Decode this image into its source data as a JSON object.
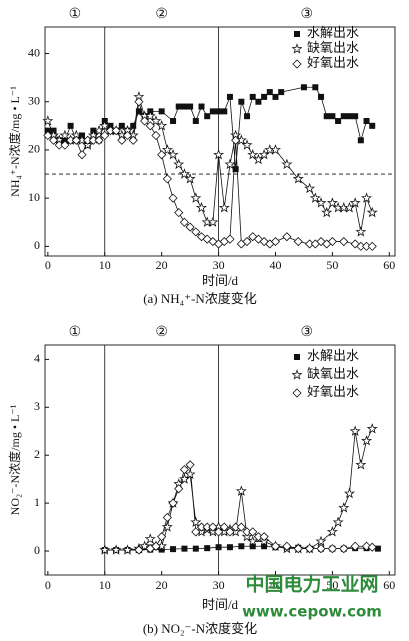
{
  "chart_data": [
    {
      "type": "line",
      "caption": "(a) NH₄⁺-N浓度变化",
      "x_label": "时间/d",
      "y_label": "NH₄⁺-N浓度/mg • L⁻¹",
      "phases": [
        "①",
        "②",
        "③"
      ],
      "vlines": [
        10,
        30
      ],
      "hline": 15,
      "xlim": [
        -0.5,
        61
      ],
      "ylim": [
        -2,
        45.5
      ],
      "xticks": [
        0,
        10,
        20,
        30,
        40,
        50,
        60
      ],
      "yticks": [
        0,
        10,
        20,
        30,
        40
      ],
      "series": [
        {
          "name": "水解出水",
          "color": "#111111",
          "marker": "square",
          "x": [
            0,
            1,
            2,
            3,
            4,
            5,
            6,
            7,
            8,
            9,
            10,
            11,
            12,
            13,
            14,
            15,
            16,
            17,
            18,
            20,
            22,
            23,
            24,
            25,
            26,
            27,
            28,
            29,
            30,
            31,
            32,
            33,
            34,
            35,
            36,
            37,
            38,
            39,
            40,
            41,
            45,
            47,
            48,
            49,
            50,
            51,
            52,
            53,
            54,
            55,
            56,
            57
          ],
          "values": [
            24,
            24,
            22,
            22,
            25,
            22,
            23,
            21,
            24,
            22,
            26,
            25,
            24,
            25,
            24,
            25,
            28,
            27,
            28,
            28,
            26,
            29,
            29,
            29,
            26,
            29,
            27,
            28,
            28,
            28,
            31,
            16,
            30,
            27,
            31,
            30,
            31,
            32,
            31,
            32,
            33,
            33,
            31,
            27,
            27,
            26,
            27,
            27,
            27,
            22,
            26,
            25
          ]
        },
        {
          "name": "缺氧出水",
          "color": "#111111",
          "marker": "star",
          "x": [
            0,
            1,
            2,
            3,
            4,
            5,
            6,
            7,
            8,
            9,
            10,
            11,
            12,
            13,
            14,
            15,
            16,
            17,
            18,
            19,
            20,
            21,
            22,
            23,
            24,
            25,
            26,
            27,
            28,
            29,
            30,
            31,
            32,
            33,
            34,
            35,
            36,
            37,
            38,
            39,
            40,
            42,
            44,
            46,
            47,
            48,
            49,
            50,
            51,
            52,
            53,
            54,
            55,
            56,
            57
          ],
          "values": [
            26,
            23,
            22,
            23,
            22,
            23,
            22,
            21,
            23,
            24,
            25,
            24,
            24,
            23,
            24,
            23,
            31,
            27,
            27,
            26,
            25,
            20,
            19,
            17,
            15,
            14,
            10,
            8,
            5,
            5,
            19,
            8,
            17,
            23,
            22,
            21,
            19,
            18,
            19,
            20,
            20,
            17,
            14,
            12,
            10,
            9,
            7,
            9,
            8,
            8,
            8,
            9,
            3,
            10,
            7
          ]
        },
        {
          "name": "好氧出水",
          "color": "#111111",
          "marker": "diamond",
          "x": [
            0,
            1,
            2,
            3,
            4,
            5,
            6,
            7,
            8,
            9,
            10,
            11,
            12,
            13,
            14,
            15,
            16,
            17,
            18,
            19,
            20,
            21,
            22,
            23,
            24,
            25,
            26,
            27,
            28,
            29,
            30,
            31,
            32,
            33,
            34,
            35,
            36,
            37,
            38,
            39,
            40,
            42,
            44,
            46,
            47,
            48,
            49,
            50,
            52,
            54,
            55,
            56,
            57
          ],
          "values": [
            23,
            22,
            21,
            21,
            22,
            22,
            19,
            22,
            22,
            22,
            23,
            24,
            24,
            22,
            23,
            22,
            30,
            26,
            25,
            23,
            19,
            14,
            10,
            7,
            5,
            4,
            3,
            2,
            1.5,
            1,
            0.5,
            1,
            1.5,
            22,
            0.5,
            1,
            2,
            1.5,
            1,
            0.5,
            1,
            2,
            1,
            0.5,
            0.5,
            1,
            0.5,
            1,
            1,
            0.5,
            0,
            0,
            0
          ]
        }
      ]
    },
    {
      "type": "line",
      "caption": "(b) NO₂⁻-N浓度变化",
      "x_label": "时间/d",
      "y_label": "NO₂⁻-N浓度/mg • L⁻¹",
      "phases": [
        "①",
        "②",
        "③"
      ],
      "vlines": [
        10,
        30
      ],
      "xlim": [
        -0.5,
        61
      ],
      "ylim": [
        -0.5,
        4.3
      ],
      "xticks": [
        0,
        10,
        20,
        30,
        40,
        50,
        60
      ],
      "yticks": [
        0,
        1,
        2,
        3,
        4
      ],
      "series": [
        {
          "name": "水解出水",
          "color": "#111111",
          "marker": "square",
          "x": [
            10,
            12,
            14,
            16,
            18,
            20,
            22,
            24,
            26,
            28,
            30,
            32,
            34,
            36,
            38,
            40,
            42,
            44,
            46,
            48,
            50,
            52,
            54,
            56,
            58
          ],
          "values": [
            0.02,
            0.02,
            0.02,
            0.02,
            0.03,
            0.03,
            0.04,
            0.05,
            0.05,
            0.06,
            0.08,
            0.08,
            0.1,
            0.1,
            0.1,
            0.08,
            0.07,
            0.07,
            0.05,
            0.05,
            0.05,
            0.05,
            0.06,
            0.06,
            0.05
          ]
        },
        {
          "name": "缺氧出水",
          "color": "#111111",
          "marker": "star",
          "x": [
            10,
            12,
            14,
            16,
            17,
            18,
            19,
            20,
            21,
            22,
            23,
            24,
            25,
            26,
            27,
            28,
            29,
            30,
            31,
            32,
            33,
            34,
            35,
            36,
            38,
            40,
            42,
            44,
            46,
            48,
            50,
            51,
            52,
            53,
            54,
            55,
            56,
            57
          ],
          "values": [
            0.02,
            0.02,
            0.02,
            0.05,
            0.1,
            0.25,
            0.1,
            0.1,
            0.5,
            1.0,
            1.4,
            1.5,
            1.6,
            0.6,
            0.4,
            0.45,
            0.4,
            0.5,
            0.4,
            0.45,
            0.4,
            1.25,
            0.3,
            0.2,
            0.2,
            0.1,
            0.05,
            0.05,
            0.05,
            0.2,
            0.4,
            0.6,
            0.9,
            1.2,
            2.5,
            1.8,
            2.3,
            2.55
          ]
        },
        {
          "name": "好氧出水",
          "color": "#111111",
          "marker": "diamond",
          "x": [
            16,
            18,
            19,
            20,
            21,
            22,
            23,
            24,
            25,
            26,
            27,
            28,
            29,
            30,
            31,
            32,
            33,
            34,
            35,
            36,
            37,
            38,
            40,
            42,
            44,
            46,
            48,
            50,
            52,
            54,
            56,
            57
          ],
          "values": [
            0.02,
            0.05,
            0.1,
            0.3,
            0.7,
            1.0,
            1.3,
            1.7,
            1.8,
            0.4,
            0.5,
            0.5,
            0.5,
            0.4,
            0.5,
            0.4,
            0.5,
            0.5,
            0.4,
            0.4,
            0.3,
            0.3,
            0.1,
            0.1,
            0.05,
            0.05,
            0.05,
            0.05,
            0.05,
            0.1,
            0.1,
            0.08
          ]
        }
      ]
    }
  ],
  "watermark": [
    "中国电力工业网",
    "www.cepow.com"
  ]
}
